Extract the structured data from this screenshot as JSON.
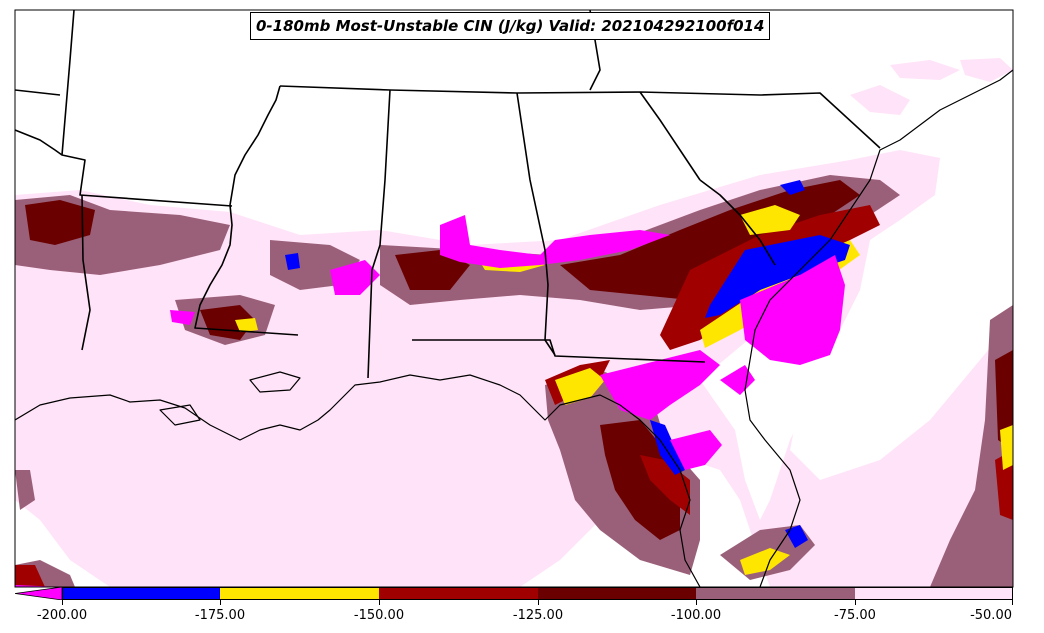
{
  "title": "0-180mb Most-Unstable CIN (J/kg) Valid: 202104292100f014",
  "colorbar": {
    "bins": [
      {
        "color": "#ff00ff",
        "name": "below--200"
      },
      {
        "color": "#0000ff",
        "name": "-200--175"
      },
      {
        "color": "#ffe600",
        "name": "-175--150"
      },
      {
        "color": "#a00000",
        "name": "-150--125"
      },
      {
        "color": "#6b0000",
        "name": "-125--100"
      },
      {
        "color": "#9b6079",
        "name": "-100--75"
      },
      {
        "color": "#ffe3f8",
        "name": "-75--50"
      }
    ],
    "tick_labels": [
      "-200.00",
      "-175.00",
      "-150.00",
      "-125.00",
      "-100.00",
      "-75.00",
      "-50.00"
    ]
  },
  "colors": {
    "magenta": "#ff00ff",
    "blue": "#0000ff",
    "yellow": "#ffe600",
    "red": "#a00000",
    "darkred": "#6b0000",
    "mauve": "#9b6079",
    "pink": "#ffe3f8",
    "boundaries": "#000000"
  }
}
